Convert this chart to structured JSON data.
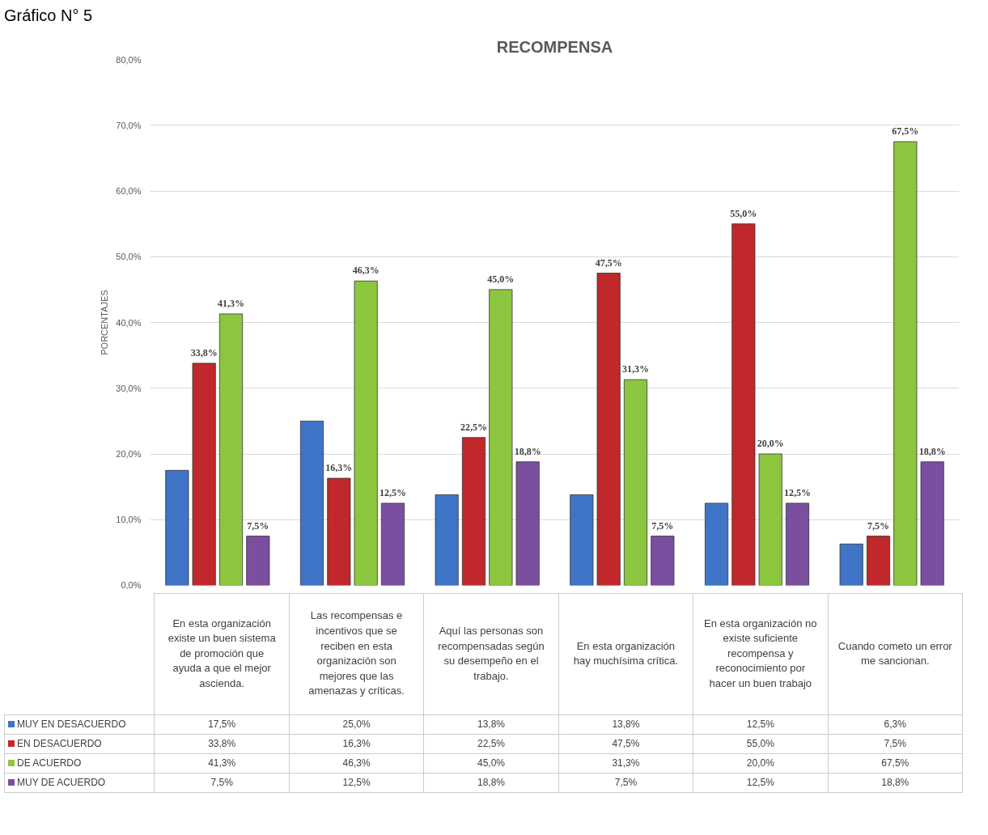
{
  "chart_data": {
    "type": "bar",
    "title": "RECOMPENSA",
    "ylabel": "PORCENTAJES",
    "annotations": [
      "Gráfico N° 5"
    ],
    "categories": [
      "En esta organización existe un buen sistema de promoción que ayuda a que el mejor ascienda.",
      "Las recompensas e incentivos que se reciben en esta organización son mejores que las amenazas y críticas.",
      "Aquí las personas son recompensadas según su desempeño en el trabajo.",
      "En esta organización hay muchísima crítica.",
      "En esta organización no existe suficiente recompensa y reconocimiento por hacer un buen trabajo",
      "Cuando cometo un error me sancionan."
    ],
    "series": [
      {
        "name": "MUY EN DESACUERDO",
        "color": "#3f74c6",
        "values": [
          17.5,
          25.0,
          13.8,
          13.8,
          12.5,
          6.3
        ],
        "value_labels": [
          "17,5%",
          "25,0%",
          "13,8%",
          "13,8%",
          "12,5%",
          "6,3%"
        ],
        "data_labels": false
      },
      {
        "name": "EN DESACUERDO",
        "color": "#c0282b",
        "values": [
          33.8,
          16.3,
          22.5,
          47.5,
          55.0,
          7.5
        ],
        "value_labels": [
          "33,8%",
          "16,3%",
          "22,5%",
          "47,5%",
          "55,0%",
          "7,5%"
        ]
      },
      {
        "name": "DE ACUERDO",
        "color": "#8cc63f",
        "values": [
          41.3,
          46.3,
          45.0,
          31.3,
          20.0,
          67.5
        ],
        "value_labels": [
          "41,3%",
          "46,3%",
          "45,0%",
          "31,3%",
          "20,0%",
          "67,5%"
        ]
      },
      {
        "name": "MUY DE ACUERDO",
        "color": "#7a4fa0",
        "values": [
          7.5,
          12.5,
          18.8,
          7.5,
          12.5,
          18.8
        ],
        "value_labels": [
          "7,5%",
          "12,5%",
          "18,8%",
          "7,5%",
          "12,5%",
          "18,8%"
        ]
      }
    ],
    "ylim": [
      0,
      80
    ],
    "yticks": [
      {
        "value": 0,
        "label": "0,0%"
      },
      {
        "value": 10,
        "label": "10,0%"
      },
      {
        "value": 20,
        "label": "20,0%"
      },
      {
        "value": 30,
        "label": "30,0%"
      },
      {
        "value": 40,
        "label": "40,0%"
      },
      {
        "value": 50,
        "label": "50,0%"
      },
      {
        "value": 60,
        "label": "60,0%"
      },
      {
        "value": 70,
        "label": "70,0%"
      },
      {
        "value": 80,
        "label": "80,0%"
      }
    ],
    "grid": "y",
    "legend": "bottom"
  }
}
